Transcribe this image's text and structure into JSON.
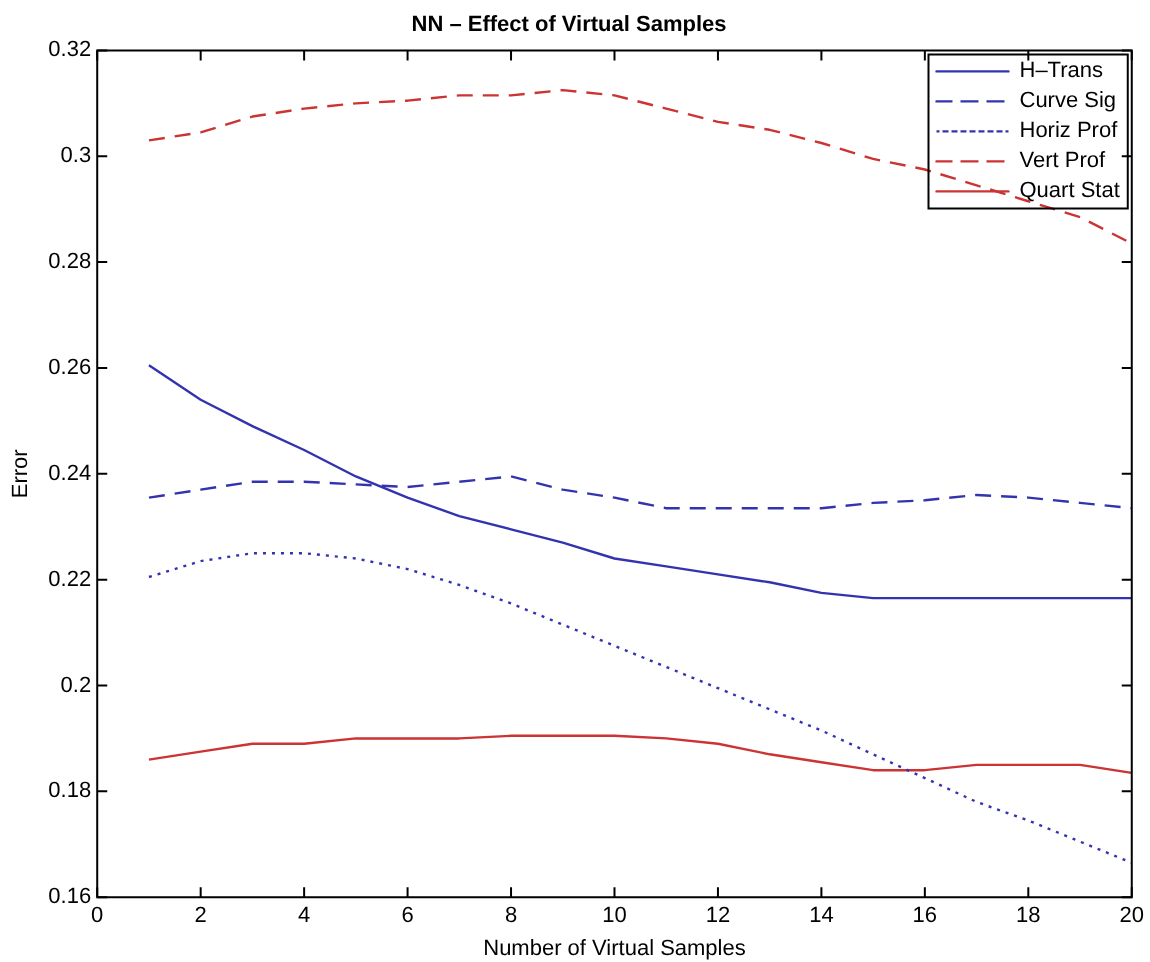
{
  "chart_data": {
    "type": "line",
    "title": "NN – Effect of Virtual Samples",
    "xlabel": "Number of Virtual Samples",
    "ylabel": "Error",
    "x": [
      1,
      2,
      3,
      4,
      5,
      6,
      7,
      8,
      9,
      10,
      11,
      12,
      13,
      14,
      15,
      16,
      17,
      18,
      19,
      20
    ],
    "xlim": [
      0,
      20
    ],
    "xticks": [
      0,
      2,
      4,
      6,
      8,
      10,
      12,
      14,
      16,
      18,
      20
    ],
    "ylim": [
      0.16,
      0.32
    ],
    "yticks": [
      0.16,
      0.18,
      0.2,
      0.22,
      0.24,
      0.26,
      0.28,
      0.3,
      0.32
    ],
    "grid": false,
    "legend": "top right",
    "marker": "none",
    "series": [
      {
        "name": "H–Trans",
        "color": "#3333b0",
        "line_style": "solid",
        "values": [
          0.2605,
          0.254,
          0.249,
          0.2445,
          0.2395,
          0.2355,
          0.232,
          0.2295,
          0.227,
          0.224,
          0.2225,
          0.221,
          0.2195,
          0.2175,
          0.2165,
          0.2165,
          0.2165,
          0.2165,
          0.2165,
          0.2165
        ]
      },
      {
        "name": "Curve Sig",
        "color": "#3333b0",
        "line_style": "dashed",
        "values": [
          0.2355,
          0.237,
          0.2385,
          0.2385,
          0.238,
          0.2375,
          0.2385,
          0.2395,
          0.237,
          0.2355,
          0.2335,
          0.2335,
          0.2335,
          0.2335,
          0.2345,
          0.235,
          0.236,
          0.2355,
          0.2345,
          0.2335
        ]
      },
      {
        "name": "Horiz Prof",
        "color": "#3333b0",
        "line_style": "dotted",
        "values": [
          0.2205,
          0.2235,
          0.225,
          0.225,
          0.224,
          0.222,
          0.219,
          0.2155,
          0.2115,
          0.2075,
          0.2035,
          0.1995,
          0.1955,
          0.1915,
          0.187,
          0.1825,
          0.178,
          0.1745,
          0.1705,
          0.1665
        ]
      },
      {
        "name": "Vert Prof",
        "color": "#cc3333",
        "line_style": "dashed",
        "values": [
          0.303,
          0.3045,
          0.3075,
          0.309,
          0.31,
          0.3105,
          0.3115,
          0.3115,
          0.3125,
          0.3115,
          0.309,
          0.3065,
          0.305,
          0.3025,
          0.2995,
          0.2975,
          0.2945,
          0.2915,
          0.2885,
          0.2835
        ]
      },
      {
        "name": "Quart Stat",
        "color": "#cc3333",
        "line_style": "solid",
        "values": [
          0.186,
          0.1875,
          0.189,
          0.189,
          0.19,
          0.19,
          0.19,
          0.1905,
          0.1905,
          0.1905,
          0.19,
          0.189,
          0.187,
          0.1855,
          0.184,
          0.184,
          0.185,
          0.185,
          0.185,
          0.1835
        ]
      }
    ]
  }
}
